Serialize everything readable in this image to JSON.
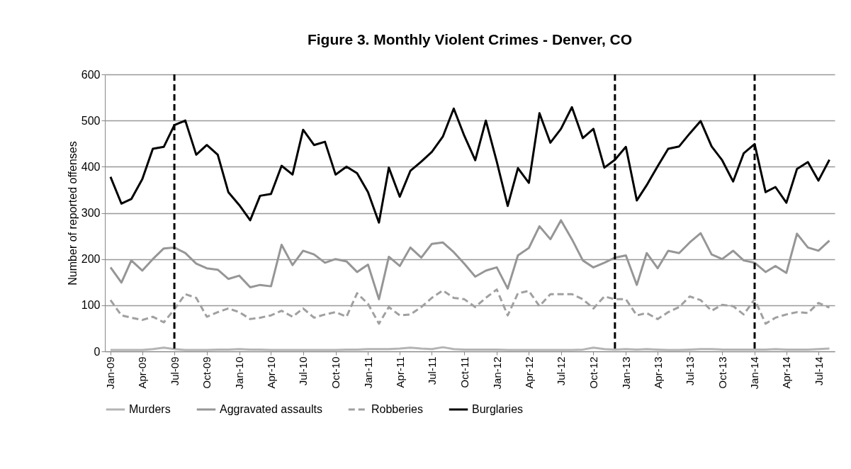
{
  "chart_data": {
    "type": "line",
    "title": "Figure 3. Monthly Violent Crimes - Denver, CO",
    "ylabel": "Number of reported offenses",
    "x": [
      "2009-01",
      "2009-02",
      "2009-03",
      "2009-04",
      "2009-05",
      "2009-06",
      "2009-07",
      "2009-08",
      "2009-09",
      "2009-10",
      "2009-11",
      "2009-12",
      "2010-01",
      "2010-02",
      "2010-03",
      "2010-04",
      "2010-05",
      "2010-06",
      "2010-07",
      "2010-08",
      "2010-09",
      "2010-10",
      "2010-11",
      "2010-12",
      "2011-01",
      "2011-02",
      "2011-03",
      "2011-04",
      "2011-05",
      "2011-06",
      "2011-07",
      "2011-08",
      "2011-09",
      "2011-10",
      "2011-11",
      "2011-12",
      "2012-01",
      "2012-02",
      "2012-03",
      "2012-04",
      "2012-05",
      "2012-06",
      "2012-07",
      "2012-08",
      "2012-09",
      "2012-10",
      "2012-11",
      "2012-12",
      "2013-01",
      "2013-02",
      "2013-03",
      "2013-04",
      "2013-05",
      "2013-06",
      "2013-07",
      "2013-08",
      "2013-09",
      "2013-10",
      "2013-11",
      "2013-12",
      "2014-01",
      "2014-02",
      "2014-03",
      "2014-04",
      "2014-05",
      "2014-06",
      "2014-07",
      "2014-08"
    ],
    "xlim": [
      "2008-12-16",
      "2014-08-16"
    ],
    "xticks": [
      {
        "value": "2009-01",
        "label": "Jan-09"
      },
      {
        "value": "2009-04",
        "label": "Apr-09"
      },
      {
        "value": "2009-07",
        "label": "Jul-09"
      },
      {
        "value": "2009-10",
        "label": "Oct-09"
      },
      {
        "value": "2010-01",
        "label": "Jan-10"
      },
      {
        "value": "2010-04",
        "label": "Apr-10"
      },
      {
        "value": "2010-07",
        "label": "Jul-10"
      },
      {
        "value": "2010-10",
        "label": "Oct-10"
      },
      {
        "value": "2011-01",
        "label": "Jan-11"
      },
      {
        "value": "2011-04",
        "label": "Apr-11"
      },
      {
        "value": "2011-07",
        "label": "Jul-11"
      },
      {
        "value": "2011-10",
        "label": "Oct-11"
      },
      {
        "value": "2012-01",
        "label": "Jan-12"
      },
      {
        "value": "2012-04",
        "label": "Apr-12"
      },
      {
        "value": "2012-07",
        "label": "Jul-12"
      },
      {
        "value": "2012-10",
        "label": "Oct-12"
      },
      {
        "value": "2013-01",
        "label": "Jan-13"
      },
      {
        "value": "2013-04",
        "label": "Apr-13"
      },
      {
        "value": "2013-07",
        "label": "Jul-13"
      },
      {
        "value": "2013-10",
        "label": "Oct-13"
      },
      {
        "value": "2014-01",
        "label": "Jan-14"
      },
      {
        "value": "2014-04",
        "label": "Apr-14"
      },
      {
        "value": "2014-07",
        "label": "Jul-14"
      }
    ],
    "ylim": [
      0,
      600
    ],
    "yticks": [
      0,
      100,
      200,
      300,
      400,
      500,
      600
    ],
    "grid": "y",
    "legend": "bottom",
    "series": [
      {
        "name": "Murders",
        "color": "#b4b4b4",
        "line_style": "solid",
        "values": [
          3,
          3,
          3,
          3,
          5,
          8,
          5,
          3,
          3,
          3,
          4,
          4,
          5,
          4,
          4,
          3,
          3,
          3,
          3,
          3,
          3,
          3,
          4,
          4,
          5,
          5,
          5,
          6,
          8,
          6,
          5,
          9,
          5,
          4,
          4,
          4,
          4,
          3,
          3,
          3,
          3,
          3,
          3,
          3,
          4,
          8,
          5,
          4,
          5,
          4,
          5,
          4,
          3,
          3,
          4,
          5,
          5,
          4,
          4,
          4,
          4,
          4,
          5,
          4,
          4,
          4,
          5,
          6
        ]
      },
      {
        "name": "Aggravated assaults",
        "color": "#969696",
        "line_style": "solid",
        "values": [
          182,
          149,
          197,
          175,
          200,
          223,
          225,
          213,
          190,
          180,
          177,
          157,
          164,
          139,
          144,
          141,
          231,
          187,
          218,
          210,
          192,
          200,
          195,
          172,
          188,
          113,
          205,
          185,
          225,
          203,
          233,
          236,
          215,
          190,
          162,
          175,
          182,
          136,
          208,
          224,
          271,
          243,
          284,
          243,
          197,
          182,
          192,
          203,
          208,
          144,
          213,
          180,
          218,
          213,
          236,
          256,
          210,
          200,
          218,
          197,
          192,
          172,
          185,
          170,
          255,
          225,
          218,
          240
        ]
      },
      {
        "name": "Robberies",
        "color": "#a0a0a0",
        "line_style": "dashed",
        "values": [
          111,
          78,
          73,
          68,
          75,
          63,
          91,
          124,
          116,
          75,
          85,
          93,
          85,
          70,
          73,
          78,
          88,
          75,
          93,
          73,
          80,
          85,
          75,
          126,
          103,
          60,
          96,
          78,
          80,
          96,
          116,
          132,
          116,
          113,
          96,
          116,
          134,
          78,
          126,
          131,
          98,
          124,
          124,
          124,
          113,
          93,
          119,
          113,
          113,
          78,
          83,
          70,
          85,
          96,
          119,
          111,
          88,
          101,
          98,
          80,
          113,
          60,
          73,
          80,
          85,
          83,
          105,
          95
        ]
      },
      {
        "name": "Burglaries",
        "color": "#000000",
        "line_style": "solid",
        "values": [
          378,
          320,
          330,
          373,
          439,
          443,
          490,
          500,
          426,
          447,
          426,
          345,
          317,
          284,
          337,
          341,
          402,
          383,
          480,
          447,
          454,
          383,
          400,
          386,
          345,
          279,
          398,
          335,
          391,
          411,
          432,
          465,
          526,
          467,
          414,
          500,
          411,
          315,
          397,
          365,
          516,
          452,
          482,
          529,
          462,
          482,
          398,
          415,
          443,
          327,
          360,
          401,
          439,
          444,
          472,
          499,
          444,
          414,
          368,
          429,
          449,
          345,
          356,
          322,
          395,
          410,
          370,
          415
        ]
      }
    ],
    "ref_lines": [
      {
        "axis": "x",
        "value": "2009-07",
        "color": "#000000",
        "line_style": "dashed"
      },
      {
        "axis": "x",
        "value": "2012-12",
        "color": "#000000",
        "line_style": "dashed"
      },
      {
        "axis": "x",
        "value": "2014-01",
        "color": "#000000",
        "line_style": "dashed"
      }
    ]
  }
}
